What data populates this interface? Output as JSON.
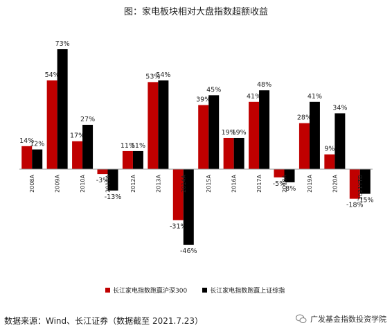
{
  "chart_data": {
    "type": "bar",
    "title": "图：家电板块相对大盘指数超额收益",
    "categories": [
      "2008A",
      "2009A",
      "2010A",
      "2011A",
      "2012A",
      "2013A",
      "2014A",
      "2015A",
      "2016A",
      "2017A",
      "2018A",
      "2019A",
      "2020A",
      "2021YTD"
    ],
    "series": [
      {
        "name": "长江家电指数跑赢沪深300",
        "color": "#c00000",
        "values": [
          14,
          54,
          17,
          -3,
          11,
          53,
          -31,
          39,
          19,
          41,
          -5,
          28,
          9,
          -18
        ],
        "labels": [
          "14%",
          "54%",
          "17%",
          "-3%",
          "11%",
          "53%",
          "-31%",
          "39%",
          "19%",
          "41%",
          "-5%",
          "28%",
          "9%",
          "-18%"
        ]
      },
      {
        "name": "长江家电指数跑赢上证综指",
        "color": "#000000",
        "values": [
          12,
          73,
          27,
          -13,
          11,
          54,
          -46,
          45,
          19,
          48,
          -8,
          41,
          34,
          -15
        ],
        "labels": [
          "12%",
          "73%",
          "27%",
          "-13%",
          "11%",
          "54%",
          "-46%",
          "45%",
          "19%",
          "48%",
          "-8%",
          "41%",
          "34%",
          "-15%"
        ]
      }
    ],
    "ylim": [
      -50,
      80
    ],
    "grid": false,
    "legend_position": "bottom"
  },
  "footer": {
    "source": "数据来源：Wind、长江证券（数据截至 2021.7.23）",
    "watermark": "广发基金指数投资学院"
  }
}
